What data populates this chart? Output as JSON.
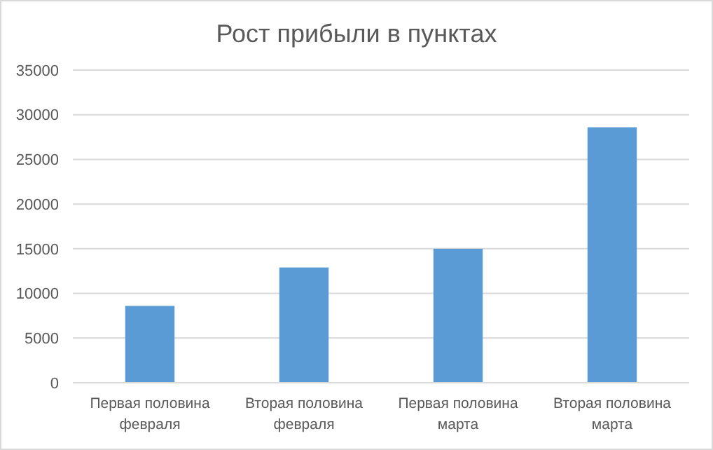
{
  "chart_data": {
    "type": "bar",
    "title": "Рост прибыли в пунктах",
    "categories": [
      "Первая половина февраля",
      "Вторая половина февраля",
      "Первая половина марта",
      "Вторая половина марта"
    ],
    "values": [
      8600,
      12900,
      15000,
      28600
    ],
    "color": "#5b9bd5",
    "ylim": [
      0,
      35000
    ],
    "yticks": [
      0,
      5000,
      10000,
      15000,
      20000,
      25000,
      30000,
      35000
    ],
    "grid": "y"
  }
}
